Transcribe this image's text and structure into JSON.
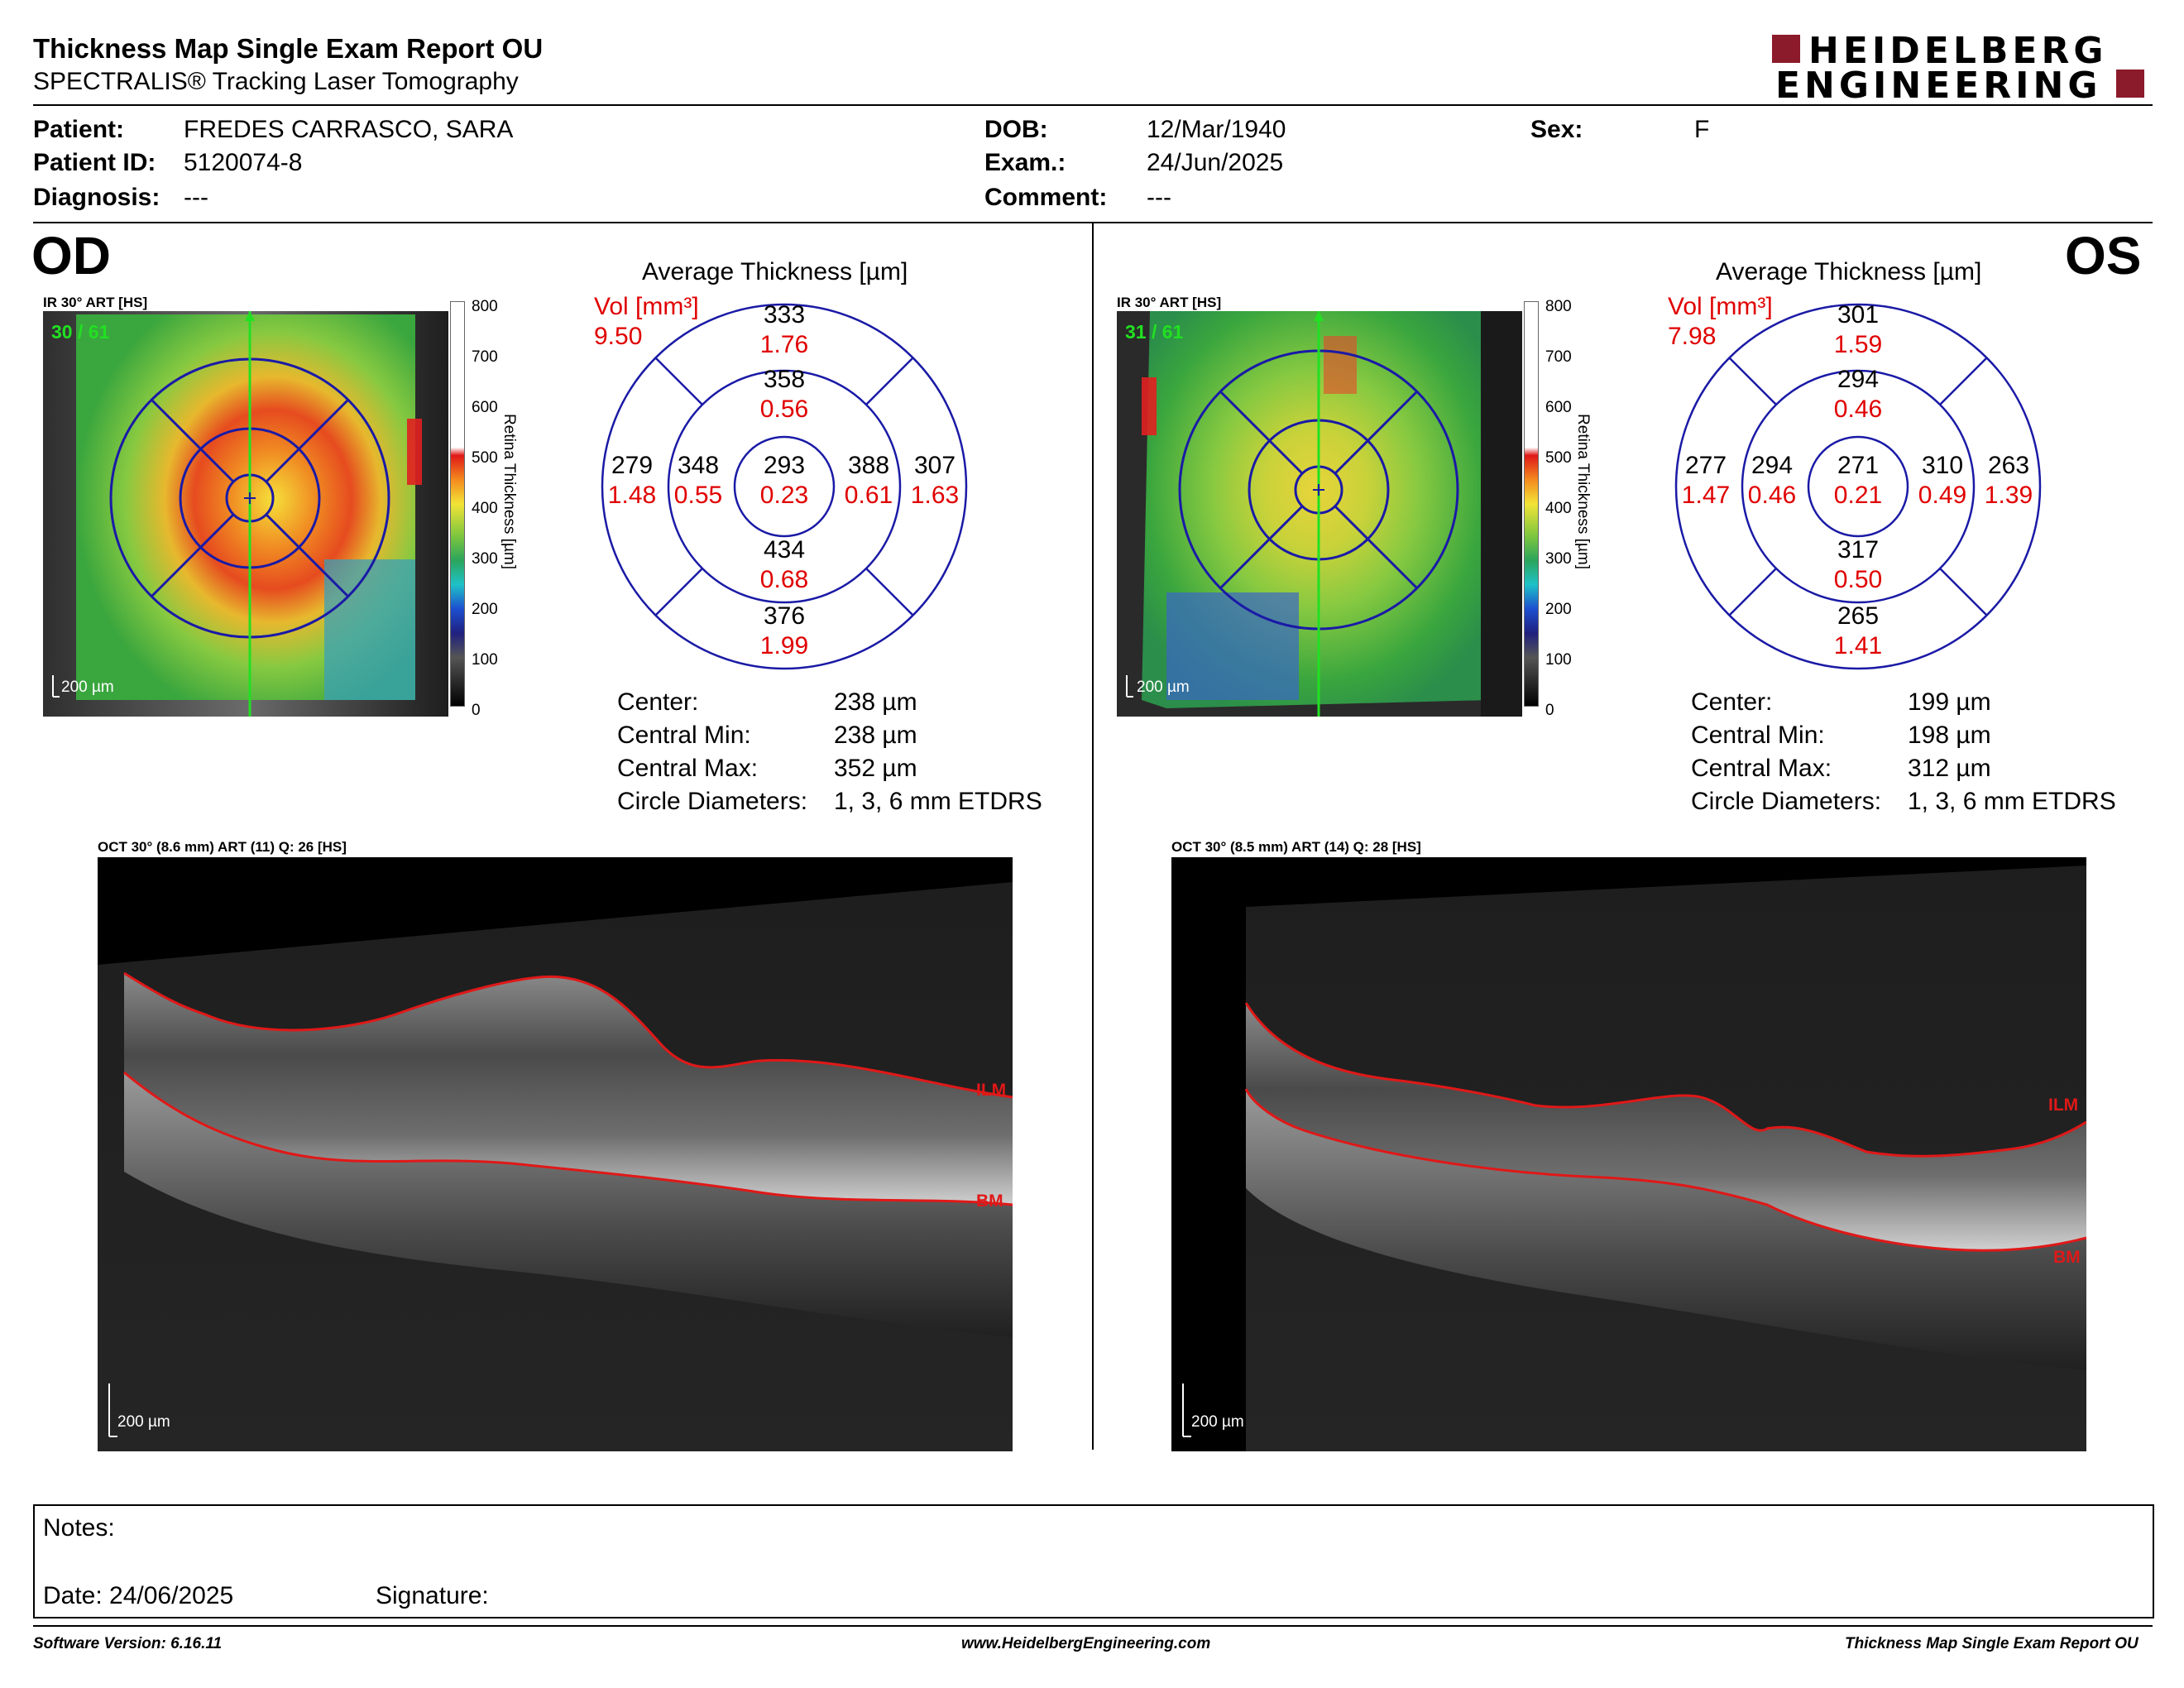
{
  "header": {
    "title": "Thickness Map Single Exam Report OU",
    "subtitle": "SPECTRALIS® Tracking Laser Tomography",
    "logo_line1": "HEIDELBERG",
    "logo_line2": "ENGINEERING"
  },
  "patient": {
    "patient_label": "Patient:",
    "patient_value": "FREDES CARRASCO, SARA",
    "id_label": "Patient ID:",
    "id_value": "5120074-8",
    "diagnosis_label": "Diagnosis:",
    "diagnosis_value": "---",
    "dob_label": "DOB:",
    "dob_value": "12/Mar/1940",
    "exam_label": "Exam.:",
    "exam_value": "24/Jun/2025",
    "comment_label": "Comment:",
    "comment_value": "---",
    "sex_label": "Sex:",
    "sex_value": "F"
  },
  "od": {
    "eye": "OD",
    "ir_label": "IR 30° ART [HS]",
    "frame": "30 / 61",
    "scale": "200 µm",
    "colorbar_title": "Retina  Thickness [µm]",
    "colorbar_ticks": [
      "800",
      "700",
      "600",
      "500",
      "400",
      "300",
      "200",
      "100",
      "0"
    ],
    "avg_title": "Average Thickness [µm]",
    "vol_label": "Vol [mm³]",
    "vol_total": "9.50",
    "sectors": {
      "outer_sup": {
        "t": "333",
        "v": "1.76"
      },
      "inner_sup": {
        "t": "358",
        "v": "0.56"
      },
      "outer_temp": {
        "t": "279",
        "v": "1.48"
      },
      "inner_temp": {
        "t": "348",
        "v": "0.55"
      },
      "center": {
        "t": "293",
        "v": "0.23"
      },
      "inner_nas": {
        "t": "388",
        "v": "0.61"
      },
      "outer_nas": {
        "t": "307",
        "v": "1.63"
      },
      "inner_inf": {
        "t": "434",
        "v": "0.68"
      },
      "outer_inf": {
        "t": "376",
        "v": "1.99"
      }
    },
    "stats": {
      "center_label": "Center:",
      "center_value": "238 µm",
      "min_label": "Central Min:",
      "min_value": "238 µm",
      "max_label": "Central Max:",
      "max_value": "352 µm",
      "diam_label": "Circle Diameters:",
      "diam_value": "1, 3, 6 mm ETDRS"
    },
    "oct_label": "OCT 30° (8.6 mm) ART (11) Q: 26 [HS]",
    "oct_scale": "200 µm",
    "ilm": "ILM",
    "bm": "BM"
  },
  "os": {
    "eye": "OS",
    "ir_label": "IR 30° ART [HS]",
    "frame": "31 / 61",
    "scale": "200 µm",
    "colorbar_title": "Retina  Thickness [µm]",
    "colorbar_ticks": [
      "800",
      "700",
      "600",
      "500",
      "400",
      "300",
      "200",
      "100",
      "0"
    ],
    "avg_title": "Average Thickness [µm]",
    "vol_label": "Vol [mm³]",
    "vol_total": "7.98",
    "sectors": {
      "outer_sup": {
        "t": "301",
        "v": "1.59"
      },
      "inner_sup": {
        "t": "294",
        "v": "0.46"
      },
      "outer_temp": {
        "t": "277",
        "v": "1.47"
      },
      "inner_temp": {
        "t": "294",
        "v": "0.46"
      },
      "center": {
        "t": "271",
        "v": "0.21"
      },
      "inner_nas": {
        "t": "310",
        "v": "0.49"
      },
      "outer_nas": {
        "t": "263",
        "v": "1.39"
      },
      "inner_inf": {
        "t": "317",
        "v": "0.50"
      },
      "outer_inf": {
        "t": "265",
        "v": "1.41"
      }
    },
    "stats": {
      "center_label": "Center:",
      "center_value": "199 µm",
      "min_label": "Central Min:",
      "min_value": "198 µm",
      "max_label": "Central Max:",
      "max_value": "312 µm",
      "diam_label": "Circle Diameters:",
      "diam_value": "1, 3, 6 mm ETDRS"
    },
    "oct_label": "OCT 30° (8.5 mm) ART (14) Q: 28 [HS]",
    "oct_scale": "200 µm",
    "ilm": "ILM",
    "bm": "BM"
  },
  "notes": {
    "notes_label": "Notes:",
    "date_label": "Date: 24/06/2025",
    "signature_label": "Signature:"
  },
  "footer": {
    "software": "Software Version: 6.16.11",
    "website": "www.HeidelbergEngineering.com",
    "report": "Thickness Map Single Exam Report OU"
  },
  "colors": {
    "accent_red": "#e00000",
    "grid_blue": "#1a1aa6",
    "brand": "#8b1a2b"
  }
}
